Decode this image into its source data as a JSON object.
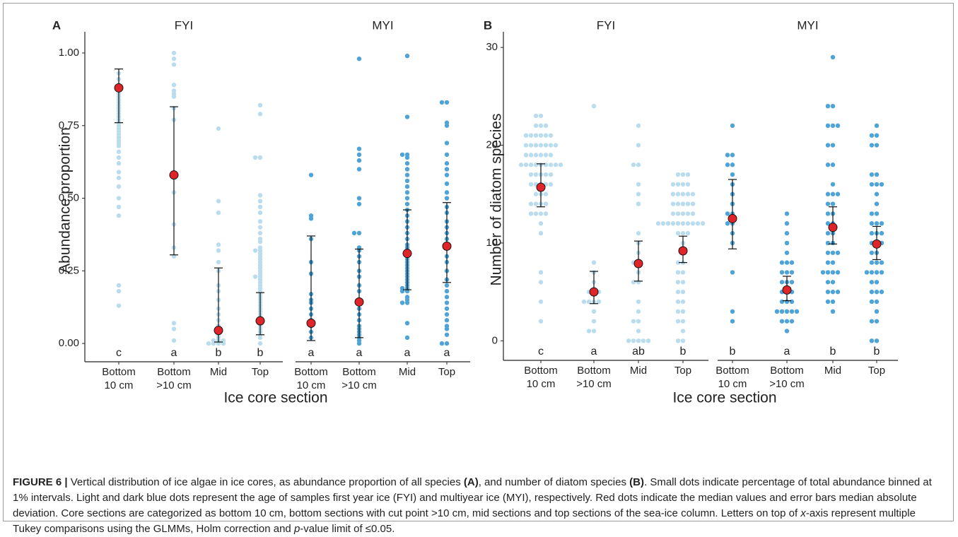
{
  "chart_data": [
    {
      "type": "dotplot",
      "panel": "A",
      "y_label": "Abundance proportion",
      "x_label": "Ice core section",
      "categories": [
        [
          "Bottom",
          "10 cm"
        ],
        [
          "Bottom",
          ">10 cm"
        ],
        [
          "Mid"
        ],
        [
          "Top"
        ]
      ],
      "ylim": [
        -0.063,
        1.073
      ],
      "yticks": [
        {
          "value": 0,
          "label": "0.00"
        },
        {
          "value": 0.25,
          "label": "0.25"
        },
        {
          "value": 0.5,
          "label": "0.50"
        },
        {
          "value": 0.75,
          "label": "0.75"
        },
        {
          "value": 1,
          "label": "1.00"
        }
      ],
      "median_color": "#e0252a",
      "facets": [
        {
          "name": "FYI",
          "color": "#b9dcef",
          "groups": [
            {
              "points": [
                0.93,
                0.91,
                0.88,
                0.86,
                0.85,
                0.84,
                0.83,
                0.82,
                0.81,
                0.8,
                0.79,
                0.78,
                0.77,
                0.76,
                0.75,
                0.74,
                0.73,
                0.72,
                0.71,
                0.7,
                0.69,
                0.68,
                0.66,
                0.64,
                0.62,
                0.59,
                0.57,
                0.54,
                0.5,
                0.47,
                0.44,
                0.2,
                0.18,
                0.13
              ],
              "median": 0.88,
              "error": [
                0.76,
                0.945
              ],
              "letter": "c"
            },
            {
              "points": [
                1.0,
                0.98,
                0.96,
                0.89,
                0.87,
                0.86,
                0.85,
                0.81,
                0.77,
                0.52,
                0.41,
                0.33,
                0.3,
                0.07,
                0.05,
                0.01
              ],
              "median": 0.58,
              "error": [
                0.305,
                0.815
              ],
              "letter": "a"
            },
            {
              "points": [
                0.74,
                0.49,
                0.45,
                0.34,
                0.32,
                0.28,
                0.25,
                0.2,
                0.18,
                0.15,
                0.12,
                0.1,
                0.08,
                0.06,
                0.05,
                0.04,
                0.03,
                0.02,
                0.01,
                0.01,
                0.01,
                0,
                0,
                0,
                0
              ],
              "median": 0.045,
              "error": [
                0.005,
                0.26
              ],
              "letter": "b"
            },
            {
              "points": [
                0.82,
                0.79,
                0.64,
                0.64,
                0.51,
                0.49,
                0.47,
                0.45,
                0.42,
                0.4,
                0.38,
                0.36,
                0.35,
                0.33,
                0.32,
                0.32,
                0.31,
                0.3,
                0.29,
                0.28,
                0.27,
                0.26,
                0.25,
                0.24,
                0.23,
                0.23,
                0.22,
                0.21,
                0.2,
                0.19,
                0.18,
                0.17,
                0.16,
                0.15,
                0.14,
                0.13,
                0.12,
                0.11,
                0.1,
                0.09,
                0.08,
                0.07,
                0.06,
                0.05,
                0.04,
                0.03,
                0.02,
                0
              ],
              "median": 0.078,
              "error": [
                0.03,
                0.175
              ],
              "letter": "b"
            }
          ]
        },
        {
          "name": "MYI",
          "color": "#4ea3d8",
          "groups": [
            {
              "points": [
                0.58,
                0.44,
                0.43,
                0.36,
                0.28,
                0.24,
                0.17,
                0.15,
                0.14,
                0.12,
                0.1,
                0.08,
                0.06,
                0.04,
                0.02
              ],
              "median": 0.07,
              "error": [
                0.01,
                0.37
              ],
              "letter": "a"
            },
            {
              "points": [
                0.98,
                0.67,
                0.65,
                0.63,
                0.6,
                0.5,
                0.48,
                0.38,
                0.38,
                0.33,
                0.32,
                0.3,
                0.28,
                0.25,
                0.23,
                0.2,
                0.18,
                0.15,
                0.12,
                0.1,
                0.08,
                0.06,
                0.05,
                0.04,
                0.03,
                0.02,
                0.01,
                0
              ],
              "median": 0.143,
              "error": [
                0.02,
                0.325
              ],
              "letter": "a"
            },
            {
              "points": [
                0.99,
                0.78,
                0.65,
                0.65,
                0.64,
                0.62,
                0.6,
                0.58,
                0.56,
                0.54,
                0.52,
                0.5,
                0.48,
                0.46,
                0.44,
                0.42,
                0.4,
                0.38,
                0.36,
                0.34,
                0.33,
                0.32,
                0.31,
                0.3,
                0.29,
                0.28,
                0.27,
                0.26,
                0.25,
                0.24,
                0.23,
                0.22,
                0.21,
                0.2,
                0.19,
                0.19,
                0.18,
                0.18,
                0.16,
                0.15,
                0.14,
                0.14,
                0.07,
                0.02
              ],
              "median": 0.31,
              "error": [
                0.185,
                0.46
              ],
              "letter": "a"
            },
            {
              "points": [
                0.83,
                0.83,
                0.76,
                0.75,
                0.69,
                0.65,
                0.62,
                0.6,
                0.58,
                0.55,
                0.52,
                0.5,
                0.47,
                0.45,
                0.42,
                0.4,
                0.38,
                0.36,
                0.33,
                0.3,
                0.28,
                0.25,
                0.22,
                0.2,
                0.18,
                0.16,
                0.14,
                0.12,
                0.1,
                0.08,
                0.06,
                0.05,
                0.03,
                0,
                0
              ],
              "median": 0.335,
              "error": [
                0.21,
                0.485
              ],
              "letter": "a"
            }
          ]
        }
      ]
    },
    {
      "type": "dotplot",
      "panel": "B",
      "y_label": "Number of diatom species",
      "x_label": "Ice core section",
      "categories": [
        [
          "Bottom",
          "10 cm"
        ],
        [
          "Bottom",
          ">10 cm"
        ],
        [
          "Mid"
        ],
        [
          "Top"
        ]
      ],
      "ylim": [
        -2,
        31.6
      ],
      "yticks": [
        0,
        10,
        20,
        30
      ],
      "median_color": "#e0252a",
      "facets": [
        {
          "name": "FYI",
          "color": "#b9dcef",
          "groups": [
            {
              "points": [
                23,
                23,
                22,
                22,
                22,
                21,
                21,
                21,
                21,
                21,
                21,
                20,
                20,
                20,
                20,
                20,
                20,
                20,
                19,
                19,
                19,
                19,
                19,
                19,
                18,
                18,
                18,
                18,
                18,
                18,
                18,
                18,
                18,
                17,
                17,
                17,
                17,
                17,
                16,
                16,
                16,
                16,
                16,
                15,
                15,
                15,
                14,
                14,
                14,
                14,
                13,
                13,
                13,
                13,
                12,
                11,
                7,
                6,
                4,
                2
              ],
              "median": 15.7,
              "error": [
                13.7,
                18.1
              ],
              "letter": "c"
            },
            {
              "points": [
                24,
                8,
                7,
                6,
                5,
                5,
                5,
                4,
                4,
                4,
                4,
                3,
                2,
                1,
                1
              ],
              "median": 5,
              "error": [
                3.8,
                7.1
              ],
              "letter": "a"
            },
            {
              "points": [
                22,
                20,
                18,
                18,
                16,
                15,
                14,
                11,
                10,
                9,
                8,
                8,
                7,
                6,
                6,
                4,
                3,
                2,
                2,
                1,
                0,
                0,
                0,
                0,
                0
              ],
              "median": 7.9,
              "error": [
                6.1,
                10.2
              ],
              "letter": "ab"
            },
            {
              "points": [
                17,
                17,
                17,
                16,
                16,
                16,
                16,
                15,
                15,
                15,
                15,
                15,
                14,
                14,
                14,
                14,
                14,
                13,
                13,
                13,
                13,
                13,
                12,
                12,
                12,
                12,
                12,
                12,
                12,
                12,
                12,
                12,
                11,
                11,
                11,
                10,
                9,
                8,
                8,
                7,
                7,
                6,
                6,
                5,
                5,
                4,
                4,
                3,
                3,
                2,
                2,
                1,
                0,
                0
              ],
              "median": 9.2,
              "error": [
                8,
                10.7
              ],
              "letter": "b"
            }
          ]
        },
        {
          "name": "MYI",
          "color": "#4ea3d8",
          "groups": [
            {
              "points": [
                22,
                19,
                19,
                18,
                18,
                17,
                16,
                15,
                14,
                13,
                13,
                12,
                12,
                11,
                10,
                7,
                3,
                2
              ],
              "median": 12.5,
              "error": [
                9.4,
                16.5
              ],
              "letter": "b"
            },
            {
              "points": [
                13,
                12,
                11,
                10,
                9,
                8,
                8,
                8,
                7,
                7,
                7,
                6,
                6,
                6,
                5,
                5,
                5,
                4,
                4,
                4,
                3,
                3,
                3,
                3,
                3,
                2,
                2,
                2,
                1
              ],
              "median": 5.2,
              "error": [
                4.1,
                6.6
              ],
              "letter": "a"
            },
            {
              "points": [
                29,
                24,
                24,
                22,
                22,
                22,
                20,
                20,
                18,
                18,
                16,
                15,
                15,
                15,
                14,
                14,
                13,
                13,
                12,
                12,
                11,
                11,
                10,
                10,
                9,
                9,
                9,
                8,
                8,
                7,
                7,
                7,
                7,
                6,
                6,
                5,
                5,
                5,
                4,
                4,
                3
              ],
              "median": 11.6,
              "error": [
                9.9,
                13.7
              ],
              "letter": "b"
            },
            {
              "points": [
                22,
                21,
                21,
                20,
                20,
                17,
                17,
                16,
                16,
                16,
                15,
                14,
                13,
                13,
                12,
                12,
                12,
                11,
                11,
                11,
                10,
                10,
                10,
                9,
                9,
                8,
                8,
                8,
                7,
                7,
                7,
                7,
                6,
                6,
                5,
                5,
                5,
                4,
                4,
                3,
                2,
                2,
                0,
                0
              ],
              "median": 9.9,
              "error": [
                8.3,
                11.7
              ],
              "letter": "b"
            }
          ]
        }
      ]
    }
  ],
  "caption": {
    "parts": [
      "FIGURE 6 |",
      " Vertical distribution of ice algae in ice cores, as abundance proportion of all species ",
      "(A)",
      ", and number of diatom species ",
      "(B)",
      ". Small dots indicate percentage of total abundance binned at 1% intervals. Light and dark blue dots represent the age of samples first year ice (FYI) and multiyear ice (MYI), respectively. Red dots indicate the median values and error bars median absolute deviation. Core sections are categorized as bottom 10 cm, bottom sections with cut point >10 cm, mid sections and top sections of the sea-ice column. Letters on top of ",
      "x",
      "-axis represent multiple Tukey comparisons using the GLMMs, Holm correction and ",
      "p",
      "-value limit of ≤0.05."
    ]
  }
}
